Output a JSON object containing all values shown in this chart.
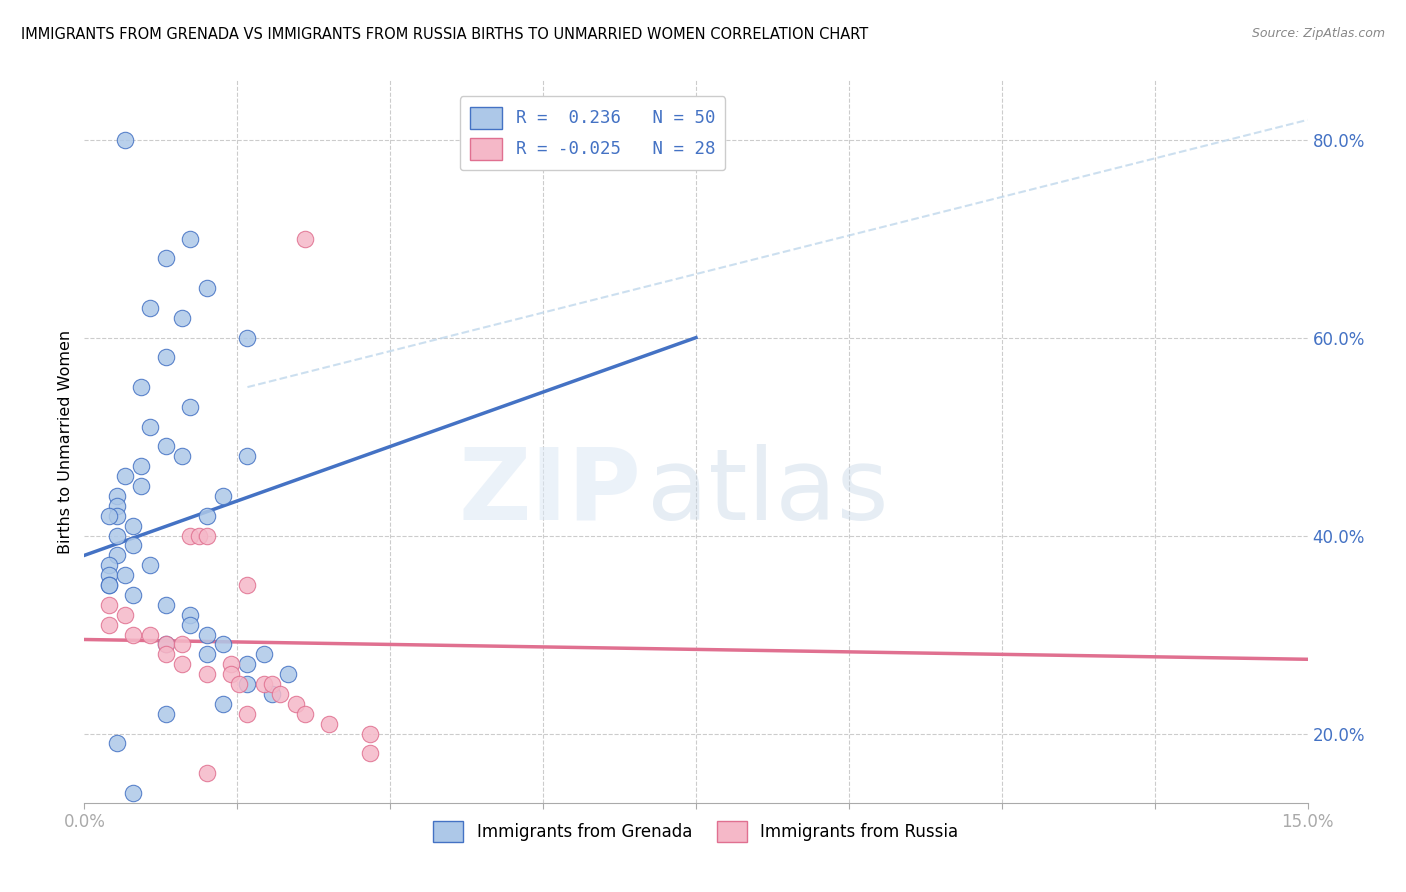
{
  "title": "IMMIGRANTS FROM GRENADA VS IMMIGRANTS FROM RUSSIA BIRTHS TO UNMARRIED WOMEN CORRELATION CHART",
  "source": "Source: ZipAtlas.com",
  "ylabel": "Births to Unmarried Women",
  "xlim": [
    0.0,
    0.15
  ],
  "ylim": [
    0.13,
    0.86
  ],
  "y_tick_vals": [
    0.2,
    0.4,
    0.6,
    0.8
  ],
  "y_tick_labels": [
    "20.0%",
    "40.0%",
    "60.0%",
    "80.0%"
  ],
  "color_grenada": "#adc8e8",
  "color_russia": "#f5b8c8",
  "line_color_grenada": "#4472c4",
  "line_color_russia": "#e07090",
  "line_color_dashed": "#c0d8ec",
  "background_color": "#ffffff",
  "watermark_zip": "ZIP",
  "watermark_atlas": "atlas",
  "grenada_x": [
    0.005,
    0.013,
    0.01,
    0.015,
    0.008,
    0.012,
    0.02,
    0.01,
    0.007,
    0.013,
    0.008,
    0.01,
    0.012,
    0.007,
    0.005,
    0.007,
    0.004,
    0.004,
    0.004,
    0.003,
    0.006,
    0.004,
    0.006,
    0.004,
    0.008,
    0.003,
    0.003,
    0.005,
    0.003,
    0.003,
    0.006,
    0.01,
    0.015,
    0.017,
    0.02,
    0.013,
    0.013,
    0.015,
    0.01,
    0.017,
    0.015,
    0.022,
    0.02,
    0.025,
    0.02,
    0.023,
    0.017,
    0.01,
    0.004,
    0.006
  ],
  "grenada_y": [
    0.8,
    0.7,
    0.68,
    0.65,
    0.63,
    0.62,
    0.6,
    0.58,
    0.55,
    0.53,
    0.51,
    0.49,
    0.48,
    0.47,
    0.46,
    0.45,
    0.44,
    0.43,
    0.42,
    0.42,
    0.41,
    0.4,
    0.39,
    0.38,
    0.37,
    0.37,
    0.36,
    0.36,
    0.35,
    0.35,
    0.34,
    0.33,
    0.42,
    0.44,
    0.48,
    0.32,
    0.31,
    0.3,
    0.29,
    0.29,
    0.28,
    0.28,
    0.27,
    0.26,
    0.25,
    0.24,
    0.23,
    0.22,
    0.19,
    0.14
  ],
  "russia_x": [
    0.003,
    0.005,
    0.003,
    0.006,
    0.008,
    0.01,
    0.012,
    0.01,
    0.013,
    0.014,
    0.012,
    0.018,
    0.015,
    0.015,
    0.018,
    0.02,
    0.019,
    0.022,
    0.023,
    0.026,
    0.02,
    0.024,
    0.027,
    0.03,
    0.035,
    0.035,
    0.015,
    0.027
  ],
  "russia_y": [
    0.33,
    0.32,
    0.31,
    0.3,
    0.3,
    0.29,
    0.29,
    0.28,
    0.4,
    0.4,
    0.27,
    0.27,
    0.26,
    0.4,
    0.26,
    0.35,
    0.25,
    0.25,
    0.25,
    0.23,
    0.22,
    0.24,
    0.22,
    0.21,
    0.2,
    0.18,
    0.16,
    0.7
  ],
  "grenada_trend_x": [
    0.0,
    0.075
  ],
  "grenada_trend_y": [
    0.38,
    0.6
  ],
  "russia_trend_x": [
    0.0,
    0.15
  ],
  "russia_trend_y": [
    0.295,
    0.275
  ],
  "dashed_trend_x": [
    0.02,
    0.15
  ],
  "dashed_trend_y": [
    0.55,
    0.82
  ]
}
